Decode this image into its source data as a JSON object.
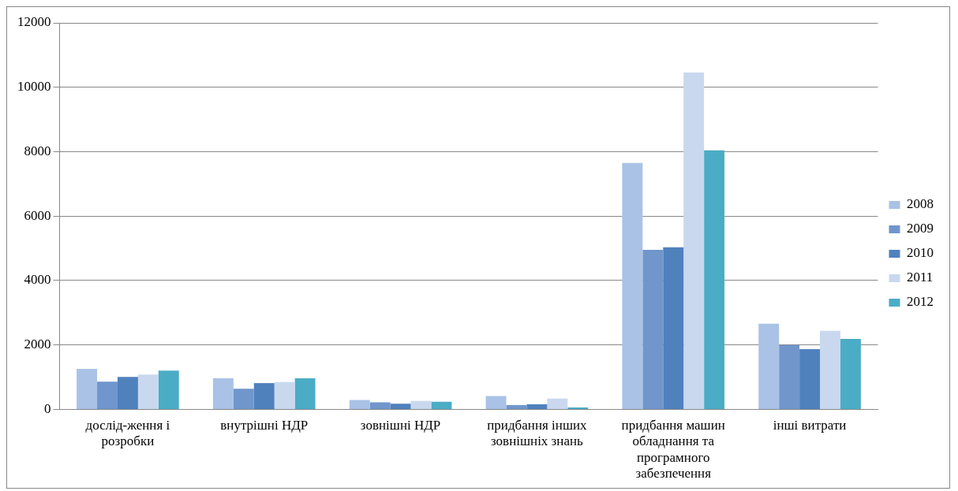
{
  "chart_data": {
    "type": "bar",
    "categories": [
      "дослід-ження і розробки",
      "внутрішні НДР",
      "зовнішні НДР",
      "придбання інших зовнішніх знань",
      "придбання машин обладнання та програмного забезпечення",
      "інші витрати"
    ],
    "series": [
      {
        "name": "2008",
        "color": "#a9c2e6",
        "values": [
          1260,
          965,
          290,
          413,
          7650,
          2660
        ]
      },
      {
        "name": "2009",
        "color": "#7096cc",
        "values": [
          860,
          640,
          220,
          130,
          4950,
          2000
        ]
      },
      {
        "name": "2010",
        "color": "#4f81bd",
        "values": [
          1010,
          815,
          175,
          158,
          5030,
          1870
        ]
      },
      {
        "name": "2011",
        "color": "#c9d8ef",
        "values": [
          1080,
          850,
          263,
          334,
          10460,
          2440
        ]
      },
      {
        "name": "2012",
        "color": "#4bacc6",
        "values": [
          1200,
          965,
          237,
          60,
          8045,
          2190
        ]
      }
    ],
    "ylim": [
      0,
      12000
    ],
    "yticks": [
      0,
      2000,
      4000,
      6000,
      8000,
      10000,
      12000
    ],
    "grid": "y",
    "legend": "right"
  }
}
